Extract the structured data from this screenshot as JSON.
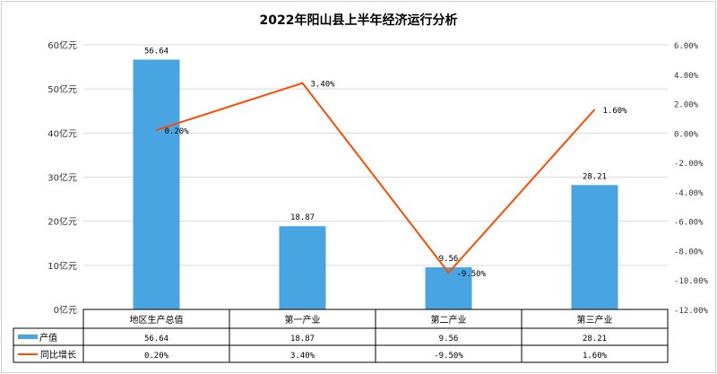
{
  "chart_data": {
    "type": "bar+line",
    "title": "2022年阳山县上半年经济运行分析",
    "categories": [
      "地区生产总值",
      "第一产业",
      "第二产业",
      "第三产业"
    ],
    "series": [
      {
        "name": "产值",
        "type": "bar",
        "axis": "left",
        "values": [
          56.64,
          18.87,
          9.56,
          28.21
        ],
        "labels": [
          "56.64",
          "18.87",
          "9.56",
          "28.21"
        ],
        "color": "#49a4e2"
      },
      {
        "name": "同比增长",
        "type": "line",
        "axis": "right",
        "values": [
          0.2,
          3.4,
          -9.5,
          1.6
        ],
        "labels": [
          "0.20%",
          "3.40%",
          "-9.50%",
          "1.60%"
        ],
        "color": "#ff4a00"
      }
    ],
    "left_axis": {
      "range": [
        0,
        60
      ],
      "ticks": [
        "0亿元",
        "10亿元",
        "20亿元",
        "30亿元",
        "40亿元",
        "50亿元",
        "60亿元"
      ]
    },
    "right_axis": {
      "range": [
        -12,
        6
      ],
      "ticks": [
        "-12.00%",
        "-10.00%",
        "-8.00%",
        "-6.00%",
        "-4.00%",
        "-2.00%",
        "0.00%",
        "2.00%",
        "4.00%",
        "6.00%"
      ]
    },
    "grid": true,
    "legend": "data-table"
  }
}
